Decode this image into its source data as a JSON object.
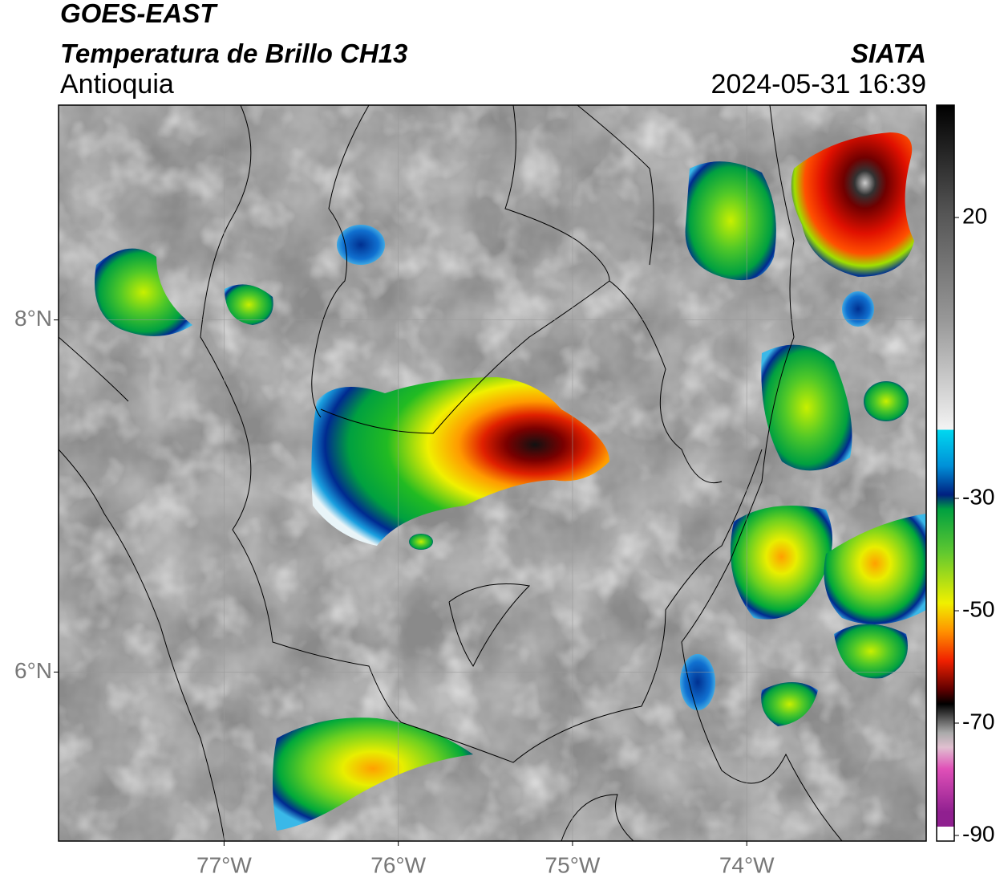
{
  "header": {
    "title": "GOES-EAST",
    "subtitle": "Temperatura de Brillo CH13",
    "region": "Antioquia",
    "source": "SIATA",
    "timestamp": "2024-05-31 16:39"
  },
  "map": {
    "xlim": [
      -77.95,
      -72.97
    ],
    "ylim": [
      5.04,
      9.22
    ],
    "xticks": [
      {
        "value": -77,
        "label": "77°W"
      },
      {
        "value": -76,
        "label": "76°W"
      },
      {
        "value": -75,
        "label": "75°W"
      },
      {
        "value": -74,
        "label": "74°W"
      }
    ],
    "yticks": [
      {
        "value": 8,
        "label": "8°N"
      },
      {
        "value": 6,
        "label": "6°N"
      }
    ],
    "grid": true
  },
  "colorbar": {
    "lim": [
      40,
      -91
    ],
    "ticks": [
      20,
      -30,
      -50,
      -70,
      -90
    ]
  }
}
